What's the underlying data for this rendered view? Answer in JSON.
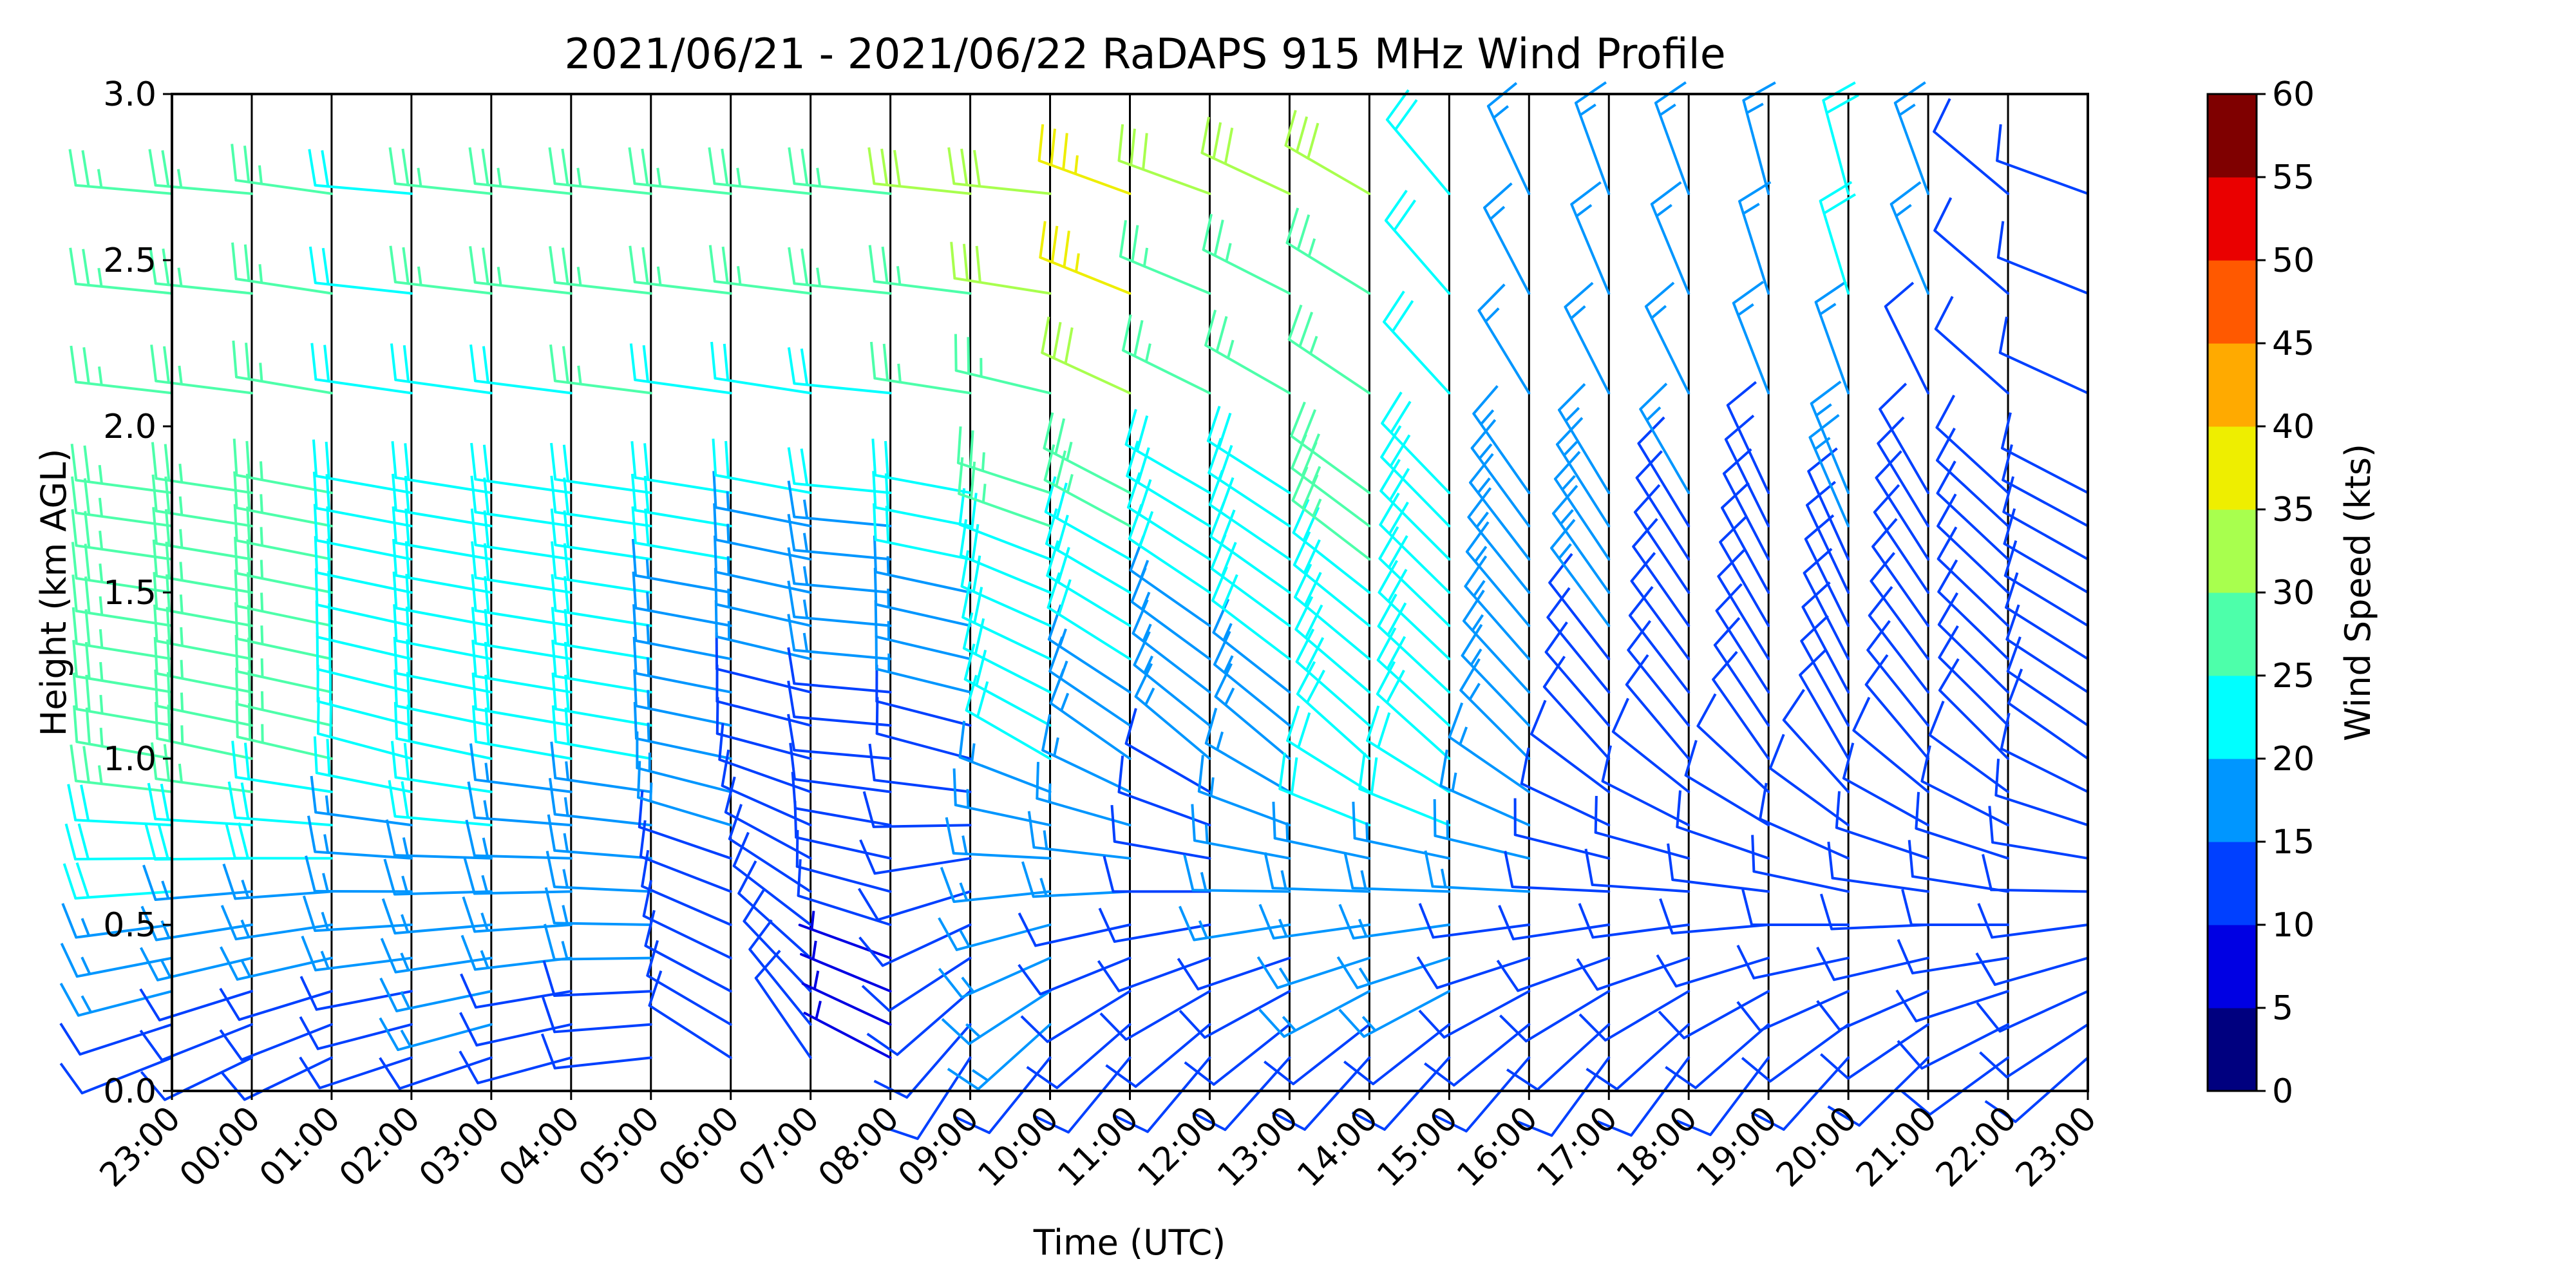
{
  "chart_data": {
    "type": "wind_barbs",
    "title": "2021/06/21 - 2021/06/22 RaDAPS 915 MHz Wind Profile",
    "xlabel": "Time (UTC)",
    "ylabel": "Height (km AGL)",
    "ylim": [
      0.0,
      3.0
    ],
    "y_ticks": [
      "0.0",
      "0.5",
      "1.0",
      "1.5",
      "2.0",
      "2.5",
      "3.0"
    ],
    "x_ticks": [
      "23:00",
      "00:00",
      "01:00",
      "02:00",
      "03:00",
      "04:00",
      "05:00",
      "06:00",
      "07:00",
      "08:00",
      "09:00",
      "10:00",
      "11:00",
      "12:00",
      "13:00",
      "14:00",
      "15:00",
      "16:00",
      "17:00",
      "18:00",
      "19:00",
      "20:00",
      "21:00",
      "22:00",
      "23:00"
    ],
    "colorbar": {
      "label": "Wind Speed (kts)",
      "ticks": [
        "0",
        "5",
        "10",
        "15",
        "20",
        "25",
        "30",
        "35",
        "40",
        "45",
        "50",
        "55",
        "60"
      ],
      "colors": [
        "#00007f",
        "#0000e3",
        "#0040ff",
        "#0096ff",
        "#0ff",
        "#4dffaa",
        "#a8ff4e",
        "#ee0",
        "#ffaa00",
        "#ff5900",
        "#ea0000",
        "#7f0000"
      ]
    },
    "profiles": [
      {
        "time": "23:00",
        "low": {
          "dir": 245,
          "spd": 10
        },
        "mid": {
          "dir": 280,
          "spd": 28
        },
        "high": {
          "dir": 275,
          "spd": 27
        }
      },
      {
        "time": "00:00",
        "low": {
          "dir": 240,
          "spd": 9
        },
        "mid": {
          "dir": 282,
          "spd": 27
        },
        "high": {
          "dir": 275,
          "spd": 29
        }
      },
      {
        "time": "01:00",
        "low": {
          "dir": 240,
          "spd": 9
        },
        "mid": {
          "dir": 283,
          "spd": 26
        },
        "high": {
          "dir": 278,
          "spd": 28
        }
      },
      {
        "time": "02:00",
        "low": {
          "dir": 248,
          "spd": 12
        },
        "mid": {
          "dir": 285,
          "spd": 21
        },
        "high": {
          "dir": 275,
          "spd": 24
        }
      },
      {
        "time": "03:00",
        "low": {
          "dir": 248,
          "spd": 14
        },
        "mid": {
          "dir": 282,
          "spd": 22
        },
        "high": {
          "dir": 276,
          "spd": 26
        }
      },
      {
        "time": "04:00",
        "low": {
          "dir": 252,
          "spd": 12
        },
        "mid": {
          "dir": 280,
          "spd": 20
        },
        "high": {
          "dir": 276,
          "spd": 27
        }
      },
      {
        "time": "05:00",
        "low": {
          "dir": 262,
          "spd": 12
        },
        "mid": {
          "dir": 280,
          "spd": 20
        },
        "high": {
          "dir": 276,
          "spd": 28
        }
      },
      {
        "time": "06:00",
        "low": {
          "dir": 305,
          "spd": 11
        },
        "mid": {
          "dir": 282,
          "spd": 16
        },
        "high": {
          "dir": 276,
          "spd": 27
        }
      },
      {
        "time": "07:00",
        "low": {
          "dir": 330,
          "spd": 10
        },
        "mid": {
          "dir": 285,
          "spd": 13
        },
        "high": {
          "dir": 276,
          "spd": 27
        }
      },
      {
        "time": "08:00",
        "low": {
          "dir": 300,
          "spd": 8
        },
        "mid": {
          "dir": 275,
          "spd": 12
        },
        "high": {
          "dir": 276,
          "spd": 29
        }
      },
      {
        "time": "09:00",
        "low": {
          "dir": 205,
          "spd": 14
        },
        "mid": {
          "dir": 285,
          "spd": 14
        },
        "high": {
          "dir": 276,
          "spd": 30
        }
      },
      {
        "time": "10:00",
        "low": {
          "dir": 210,
          "spd": 14
        },
        "mid": {
          "dir": 300,
          "spd": 20
        },
        "high": {
          "dir": 276,
          "spd": 33
        }
      },
      {
        "time": "11:00",
        "low": {
          "dir": 210,
          "spd": 12
        },
        "mid": {
          "dir": 305,
          "spd": 17
        },
        "high": {
          "dir": 290,
          "spd": 38
        }
      },
      {
        "time": "12:00",
        "low": {
          "dir": 210,
          "spd": 12
        },
        "mid": {
          "dir": 310,
          "spd": 15
        },
        "high": {
          "dir": 290,
          "spd": 32
        }
      },
      {
        "time": "13:00",
        "low": {
          "dir": 212,
          "spd": 12
        },
        "mid": {
          "dir": 310,
          "spd": 18
        },
        "high": {
          "dir": 295,
          "spd": 30
        }
      },
      {
        "time": "14:00",
        "low": {
          "dir": 212,
          "spd": 13
        },
        "mid": {
          "dir": 312,
          "spd": 22
        },
        "high": {
          "dir": 300,
          "spd": 30
        }
      },
      {
        "time": "15:00",
        "low": {
          "dir": 212,
          "spd": 13
        },
        "mid": {
          "dir": 312,
          "spd": 22
        },
        "high": {
          "dir": 320,
          "spd": 22
        }
      },
      {
        "time": "16:00",
        "low": {
          "dir": 210,
          "spd": 12
        },
        "mid": {
          "dir": 315,
          "spd": 17
        },
        "high": {
          "dir": 335,
          "spd": 18
        }
      },
      {
        "time": "17:00",
        "low": {
          "dir": 205,
          "spd": 11
        },
        "mid": {
          "dir": 318,
          "spd": 14
        },
        "high": {
          "dir": 340,
          "spd": 19
        }
      },
      {
        "time": "18:00",
        "low": {
          "dir": 205,
          "spd": 11
        },
        "mid": {
          "dir": 320,
          "spd": 11
        },
        "high": {
          "dir": 340,
          "spd": 19
        }
      },
      {
        "time": "19:00",
        "low": {
          "dir": 205,
          "spd": 10
        },
        "mid": {
          "dir": 325,
          "spd": 11
        },
        "high": {
          "dir": 345,
          "spd": 18
        }
      },
      {
        "time": "20:00",
        "low": {
          "dir": 210,
          "spd": 10
        },
        "mid": {
          "dir": 330,
          "spd": 10
        },
        "high": {
          "dir": 345,
          "spd": 23
        }
      },
      {
        "time": "21:00",
        "low": {
          "dir": 215,
          "spd": 10
        },
        "mid": {
          "dir": 320,
          "spd": 10
        },
        "high": {
          "dir": 340,
          "spd": 16
        }
      },
      {
        "time": "22:00",
        "low": {
          "dir": 225,
          "spd": 10
        },
        "mid": {
          "dir": 315,
          "spd": 10
        },
        "high": {
          "dir": 310,
          "spd": 12
        }
      },
      {
        "time": "23:00",
        "low": {
          "dir": 220,
          "spd": 10
        },
        "mid": {
          "dir": 305,
          "spd": 11
        },
        "high": {
          "dir": 290,
          "spd": 12
        }
      }
    ]
  }
}
